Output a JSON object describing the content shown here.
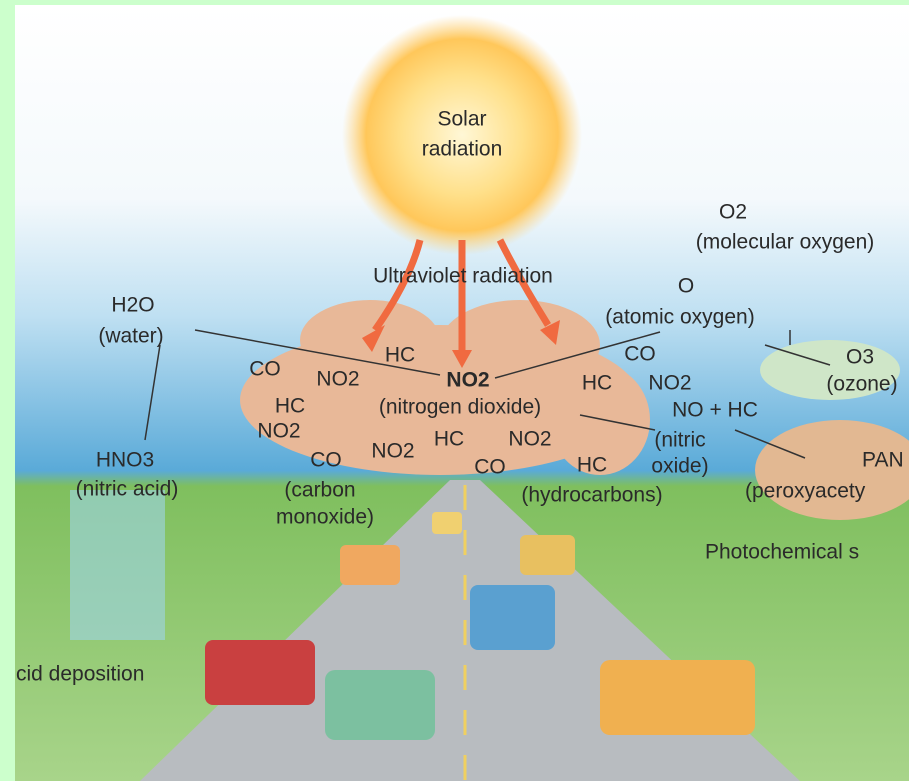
{
  "labels": [
    "Solar",
    "radiation",
    "Ultraviolet radiation",
    "O2",
    "(molecular oxygen)",
    "O",
    "(atomic oxygen)",
    "O3",
    "(ozone)",
    "H2O",
    "(water)",
    "HNO3",
    "(nitric acid)",
    "NO2",
    "(nitrogen dioxide)",
    "NO + HC",
    "(nitric",
    "oxide)",
    "PAN",
    "(peroxyacety",
    "Photochemical s",
    "cid deposition",
    "CO",
    "(carbon",
    "monoxide)",
    "HC",
    "(hydrocarbons)"
  ],
  "pollutants": [
    "HC",
    "CO",
    "NO2",
    "HC",
    "NO2",
    "NO2",
    "HC",
    "NO2",
    "CO",
    "CO",
    "HC",
    "NO2"
  ]
}
